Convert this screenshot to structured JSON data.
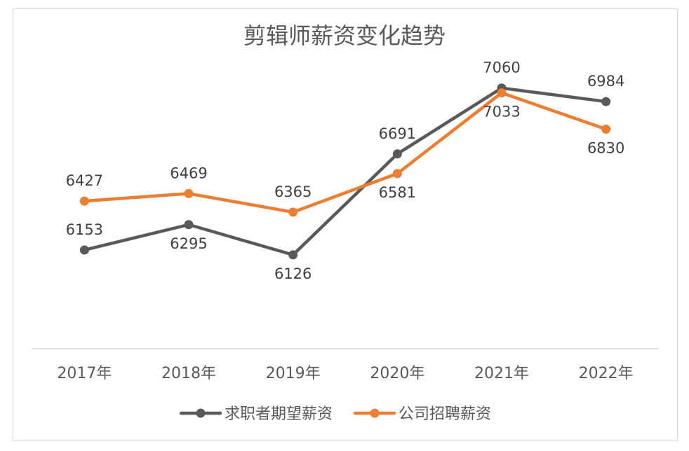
{
  "chart_data": {
    "type": "line",
    "title": "剪辑师薪资变化趋势",
    "categories": [
      "2017年",
      "2018年",
      "2019年",
      "2020年",
      "2021年",
      "2022年"
    ],
    "series": [
      {
        "name": "求职者期望薪资",
        "color": "#595959",
        "values": [
          6153,
          6295,
          6126,
          6691,
          7060,
          6984
        ]
      },
      {
        "name": "公司招聘薪资",
        "color": "#ed7d31",
        "values": [
          6427,
          6469,
          6365,
          6581,
          7033,
          6830
        ]
      }
    ],
    "ylim": [
      5600,
      7200
    ],
    "grid": false,
    "legend_position": "bottom"
  }
}
